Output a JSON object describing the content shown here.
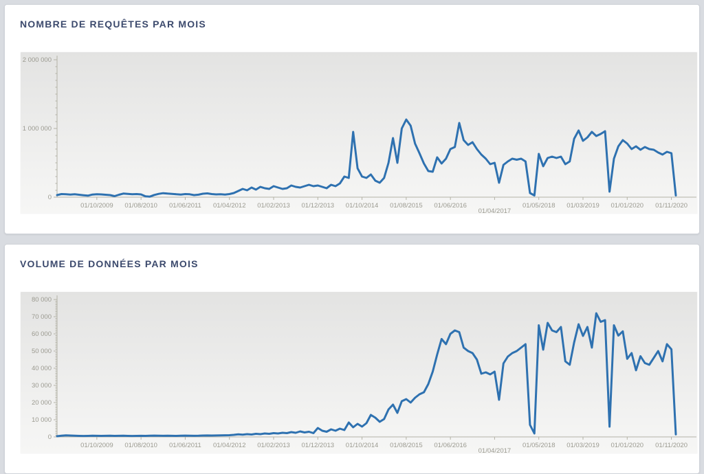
{
  "panels": [
    {
      "title": "NOMBRE DE REQUÊTES PAR MOIS"
    },
    {
      "title": "VOLUME DE DONNÉES PAR MOIS"
    }
  ],
  "colors": {
    "line": "#2e71b0",
    "axis": "#b3b2a6",
    "tick_label": "#9b9a90",
    "title": "#3c4a6d",
    "page_background": "#d9dce1"
  },
  "chart_data": [
    {
      "type": "line",
      "title": "NOMBRE DE REQUÊTES PAR MOIS",
      "legend": "none",
      "grid": false,
      "x_unit": "month",
      "ylim": [
        0,
        2000000
      ],
      "y_axis": {
        "min": 0,
        "max": 2000000,
        "major": 1000000,
        "minor": 100000,
        "tick_labels": [
          {
            "value": 0,
            "label": "0"
          },
          {
            "value": 1000000,
            "label": "1 000 000"
          },
          {
            "value": 2000000,
            "label": "2 000 000"
          }
        ]
      },
      "x_ticks": [
        {
          "index": 9,
          "label": "01/10/2009"
        },
        {
          "index": 19,
          "label": "01/08/2010"
        },
        {
          "index": 29,
          "label": "01/06/2011"
        },
        {
          "index": 39,
          "label": "01/04/2012"
        },
        {
          "index": 49,
          "label": "01/02/2013"
        },
        {
          "index": 59,
          "label": "01/12/2013"
        },
        {
          "index": 69,
          "label": "01/10/2014"
        },
        {
          "index": 79,
          "label": "01/08/2015"
        },
        {
          "index": 89,
          "label": "01/06/2016"
        },
        {
          "index": 99,
          "label": "01/04/2017",
          "stagger": true
        },
        {
          "index": 109,
          "label": "01/05/2018"
        },
        {
          "index": 119,
          "label": "01/03/2019"
        },
        {
          "index": 129,
          "label": "01/01/2020"
        },
        {
          "index": 139,
          "label": "01/11/2020"
        }
      ],
      "series": [
        {
          "name": "requêtes par mois",
          "color": "#2e71b0",
          "values": [
            30000,
            45000,
            42000,
            38000,
            42000,
            35000,
            28000,
            22000,
            38000,
            42000,
            40000,
            35000,
            30000,
            15000,
            35000,
            52000,
            48000,
            42000,
            45000,
            40000,
            12000,
            8000,
            32000,
            48000,
            58000,
            52000,
            48000,
            42000,
            38000,
            45000,
            42000,
            30000,
            36000,
            50000,
            55000,
            45000,
            40000,
            42000,
            38000,
            45000,
            60000,
            90000,
            120000,
            100000,
            140000,
            110000,
            150000,
            130000,
            120000,
            160000,
            140000,
            120000,
            130000,
            170000,
            150000,
            140000,
            160000,
            180000,
            160000,
            170000,
            150000,
            130000,
            180000,
            160000,
            200000,
            300000,
            280000,
            950000,
            420000,
            300000,
            280000,
            330000,
            240000,
            210000,
            280000,
            500000,
            860000,
            500000,
            1000000,
            1130000,
            1040000,
            780000,
            640000,
            490000,
            380000,
            370000,
            580000,
            490000,
            560000,
            700000,
            730000,
            1080000,
            830000,
            760000,
            800000,
            700000,
            620000,
            560000,
            480000,
            500000,
            210000,
            470000,
            520000,
            560000,
            545000,
            560000,
            520000,
            60000,
            25000,
            630000,
            450000,
            570000,
            590000,
            570000,
            590000,
            480000,
            520000,
            850000,
            970000,
            820000,
            870000,
            950000,
            890000,
            920000,
            960000,
            80000,
            560000,
            740000,
            830000,
            780000,
            700000,
            740000,
            690000,
            730000,
            700000,
            690000,
            650000,
            620000,
            660000,
            640000,
            25000
          ]
        }
      ]
    },
    {
      "type": "line",
      "title": "VOLUME DE DONNÉES PAR MOIS",
      "legend": "none",
      "grid": false,
      "x_unit": "month",
      "ylim": [
        0,
        80000
      ],
      "y_axis": {
        "min": 0,
        "max": 80000,
        "major": 10000,
        "minor": 1000,
        "tick_labels": [
          {
            "value": 0,
            "label": "0"
          },
          {
            "value": 10000,
            "label": "10 000"
          },
          {
            "value": 20000,
            "label": "20 000"
          },
          {
            "value": 30000,
            "label": "30 000"
          },
          {
            "value": 40000,
            "label": "40 000"
          },
          {
            "value": 50000,
            "label": "50 000"
          },
          {
            "value": 60000,
            "label": "60 000"
          },
          {
            "value": 70000,
            "label": "70 000"
          },
          {
            "value": 80000,
            "label": "80 000"
          }
        ]
      },
      "x_ticks": [
        {
          "index": 9,
          "label": "01/10/2009"
        },
        {
          "index": 19,
          "label": "01/08/2010"
        },
        {
          "index": 29,
          "label": "01/06/2011"
        },
        {
          "index": 39,
          "label": "01/04/2012"
        },
        {
          "index": 49,
          "label": "01/02/2013"
        },
        {
          "index": 59,
          "label": "01/12/2013"
        },
        {
          "index": 69,
          "label": "01/10/2014"
        },
        {
          "index": 79,
          "label": "01/08/2015"
        },
        {
          "index": 89,
          "label": "01/06/2016"
        },
        {
          "index": 99,
          "label": "01/04/2017",
          "stagger": true
        },
        {
          "index": 109,
          "label": "01/05/2018"
        },
        {
          "index": 119,
          "label": "01/03/2019"
        },
        {
          "index": 129,
          "label": "01/01/2020"
        },
        {
          "index": 139,
          "label": "01/11/2020"
        }
      ],
      "series": [
        {
          "name": "volume de données par mois",
          "color": "#2e71b0",
          "values": [
            400,
            700,
            900,
            800,
            700,
            600,
            550,
            600,
            700,
            650,
            600,
            650,
            700,
            600,
            650,
            700,
            600,
            550,
            600,
            650,
            600,
            700,
            750,
            700,
            650,
            700,
            650,
            600,
            700,
            750,
            700,
            650,
            700,
            800,
            850,
            800,
            850,
            900,
            950,
            1000,
            1200,
            1500,
            1300,
            1600,
            1400,
            1800,
            1600,
            2000,
            1800,
            2200,
            2000,
            2400,
            2200,
            2800,
            2400,
            3200,
            2600,
            3000,
            2200,
            5200,
            3600,
            3000,
            4400,
            3600,
            4800,
            4000,
            8400,
            5600,
            7600,
            6000,
            8000,
            12800,
            11200,
            8800,
            10400,
            16000,
            18800,
            14000,
            20800,
            22000,
            20000,
            22800,
            24800,
            26000,
            30800,
            38000,
            48000,
            57000,
            54000,
            60000,
            62000,
            61000,
            52000,
            50000,
            48800,
            45000,
            36800,
            37600,
            36400,
            38000,
            21600,
            42800,
            46800,
            48800,
            50000,
            52000,
            54000,
            7000,
            2000,
            65000,
            50800,
            66400,
            62000,
            61000,
            64000,
            44000,
            42000,
            55000,
            65600,
            58800,
            64000,
            52000,
            72000,
            67000,
            68000,
            6000,
            65000,
            59000,
            61500,
            45500,
            48800,
            38800,
            47000,
            43000,
            42000,
            46000,
            50000,
            44000,
            54000,
            51000,
            1500
          ]
        }
      ]
    }
  ]
}
